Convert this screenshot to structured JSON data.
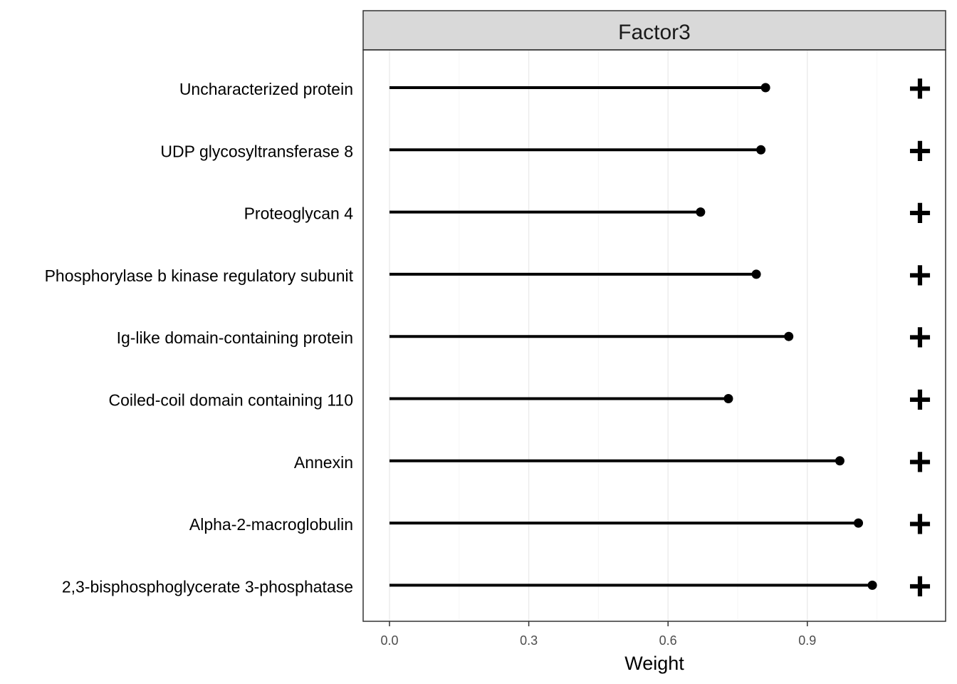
{
  "chart_data": {
    "type": "lollipop",
    "facet": "Factor3",
    "xlabel": "Weight",
    "xlim": [
      -0.11,
      1.2
    ],
    "xticks": [
      0.0,
      0.3,
      0.6,
      0.9
    ],
    "xtick_labels": [
      "0.0",
      "0.3",
      "0.6",
      "0.9"
    ],
    "grid": true,
    "categories": [
      "Uncharacterized protein",
      "UDP glycosyltransferase 8",
      "Proteoglycan 4",
      "Phosphorylase b kinase regulatory subunit",
      "Ig-like domain-containing protein",
      "Coiled-coil domain containing 110",
      "Annexin",
      "Alpha-2-macroglobulin",
      "2,3-bisphosphoglycerate 3-phosphatase"
    ],
    "values": [
      0.81,
      0.8,
      0.67,
      0.79,
      0.86,
      0.73,
      0.97,
      1.01,
      1.04
    ],
    "signs": [
      "+",
      "+",
      "+",
      "+",
      "+",
      "+",
      "+",
      "+",
      "+"
    ]
  }
}
